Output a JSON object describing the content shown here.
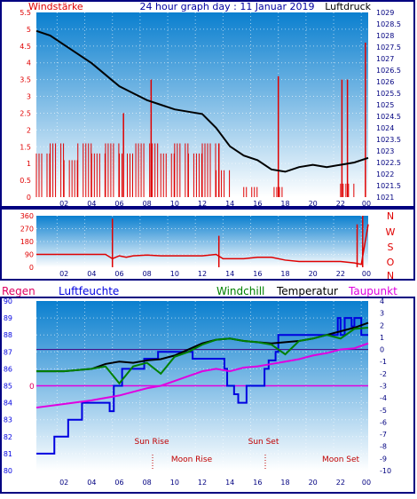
{
  "colors": {
    "frame": "#000080",
    "bg_top": "#0a7fcf",
    "bg_bottom": "#ffffff",
    "pressure": "#000000",
    "wind": "#e00000",
    "wind_peak": "#0000cc",
    "direction": "#e00000",
    "humidity": "#0000e0",
    "temperature": "#000000",
    "windchill": "#008000",
    "dewpoint": "#e000e0",
    "rain": "#e00060",
    "sun_text": "#c00000"
  },
  "panel1": {
    "title_left": "Windstärke",
    "title_center": "24 hour graph day : 11 Januar 2019",
    "title_right": "Luftdruck",
    "left_ticks": [
      "0",
      "0.5",
      "1",
      "1.5",
      "2",
      "2.5",
      "3",
      "3.5",
      "4",
      "4.5",
      "5",
      "5.5"
    ],
    "right_ticks": [
      "1021",
      "1021.5",
      "1022",
      "1022.5",
      "1023",
      "1023.5",
      "1024",
      "1024.5",
      "1025",
      "1025.5",
      "1026",
      "1026.5",
      "1027",
      "1027.5",
      "1028",
      "1028.5",
      "1029"
    ],
    "x_ticks": [
      "02",
      "04",
      "06",
      "08",
      "10",
      "12",
      "14",
      "16",
      "18",
      "20",
      "22",
      "00"
    ]
  },
  "panel2": {
    "left_ticks": [
      "0",
      "90",
      "180",
      "270",
      "360"
    ],
    "right_labels": [
      "N",
      "W",
      "S",
      "O",
      "N"
    ],
    "x_ticks": [
      "02",
      "04",
      "06",
      "08",
      "10",
      "12",
      "14",
      "16",
      "18",
      "20",
      "22",
      "00"
    ]
  },
  "panel3": {
    "label_rain": "Regen",
    "label_humidity": "Luftfeuchte",
    "label_windchill": "Windchill",
    "label_temperature": "Temperatur",
    "label_dewpoint": "Taupunkt",
    "rain_zero": "0",
    "left_ticks": [
      "80",
      "81",
      "82",
      "83",
      "84",
      "85",
      "86",
      "87",
      "88",
      "89",
      "90"
    ],
    "right_ticks": [
      "-10",
      "-9",
      "-8",
      "-7",
      "-6",
      "-5",
      "-4",
      "-3",
      "-2",
      "-1",
      "0",
      "1",
      "2",
      "3",
      "4"
    ],
    "x_ticks": [
      "02",
      "04",
      "06",
      "08",
      "10",
      "12",
      "14",
      "16",
      "18",
      "20",
      "22",
      "00"
    ],
    "sun_rise": "Sun Rise",
    "moon_rise": "Moon Rise",
    "sun_set": "Sun Set",
    "moon_set": "Moon Set"
  },
  "chart_data": [
    {
      "type": "line",
      "title": "24 hour graph day : 11 Januar 2019",
      "ylabel_left": "Windstärke",
      "ylabel_right": "Luftdruck",
      "xlim": [
        0,
        24
      ],
      "ylim_left": [
        0,
        5.5
      ],
      "ylim_right": [
        1021,
        1029
      ],
      "series": [
        {
          "name": "Luftdruck",
          "axis": "right",
          "x": [
            0,
            1,
            2,
            3,
            4,
            5,
            6,
            7,
            8,
            9,
            10,
            11,
            12,
            13,
            14,
            15,
            16,
            17,
            18,
            19,
            20,
            21,
            22,
            23,
            24
          ],
          "values": [
            1028.2,
            1028.0,
            1027.6,
            1027.2,
            1026.8,
            1026.3,
            1025.8,
            1025.5,
            1025.2,
            1025.0,
            1024.8,
            1024.7,
            1024.6,
            1024.0,
            1023.2,
            1022.8,
            1022.6,
            1022.2,
            1022.1,
            1022.3,
            1022.4,
            1022.3,
            1022.4,
            1022.5,
            1022.7
          ]
        },
        {
          "name": "Windstärke",
          "axis": "left",
          "x": [
            0,
            1,
            2,
            3,
            4,
            5,
            6,
            7,
            8,
            9,
            10,
            11,
            12,
            13,
            14,
            15,
            16,
            17,
            18,
            19,
            20,
            21,
            22,
            23,
            24
          ],
          "values": [
            1.3,
            1.6,
            1.1,
            1.6,
            1.3,
            1.6,
            1.3,
            1.6,
            1.6,
            1.3,
            1.6,
            1.3,
            1.6,
            0.8,
            0,
            0.3,
            0,
            0.3,
            0,
            0,
            0,
            0,
            0.4,
            0,
            0.8
          ]
        }
      ]
    },
    {
      "type": "scatter",
      "name": "Windrichtung",
      "xlim": [
        0,
        24
      ],
      "ylim": [
        0,
        360
      ],
      "x": [
        0,
        1,
        2,
        3,
        4,
        5,
        5.5,
        6,
        6.5,
        7,
        8,
        9,
        10,
        11,
        12,
        13,
        13.5,
        14,
        15,
        16,
        17,
        18,
        19,
        20,
        21,
        22,
        23,
        23.5,
        24
      ],
      "values": [
        90,
        90,
        90,
        90,
        90,
        90,
        60,
        80,
        70,
        80,
        85,
        80,
        80,
        80,
        80,
        90,
        60,
        60,
        60,
        70,
        70,
        50,
        40,
        40,
        40,
        40,
        30,
        20,
        300
      ]
    },
    {
      "type": "line",
      "ylabel_left": "Luftfeuchte",
      "ylabel_right": "Temperatur",
      "xlim": [
        0,
        24
      ],
      "ylim_left": [
        80,
        90
      ],
      "ylim_right": [
        -10,
        4
      ],
      "series": [
        {
          "name": "Luftfeuchte",
          "axis": "left",
          "x": [
            0,
            1,
            1.3,
            2.3,
            3.3,
            4.3,
            5.3,
            5.6,
            6.2,
            7.2,
            7.8,
            8.8,
            10.3,
            11.3,
            13.6,
            13.8,
            14.3,
            14.6,
            15.2,
            16.5,
            16.8,
            17.3,
            17.5,
            19.5,
            21.5,
            21.8,
            22,
            22.3,
            22.8,
            23,
            23.5,
            24
          ],
          "values": [
            81,
            81,
            82,
            83,
            84,
            84,
            83.5,
            85,
            86,
            86,
            86.6,
            87,
            87,
            86.6,
            86,
            85,
            84.5,
            84,
            85,
            86,
            86.5,
            87,
            88,
            88,
            88,
            89,
            88,
            89,
            88.5,
            89,
            88,
            88
          ]
        },
        {
          "name": "Temperatur",
          "axis": "right",
          "x": [
            0,
            2,
            4,
            5,
            6,
            7,
            8,
            9,
            10,
            11,
            12,
            13,
            14,
            15,
            16,
            17,
            18,
            19,
            20,
            21,
            22,
            23,
            24
          ],
          "values": [
            -1.8,
            -1.8,
            -1.6,
            -1.2,
            -1.0,
            -1.1,
            -0.9,
            -0.8,
            -0.5,
            0.0,
            0.5,
            0.8,
            0.9,
            0.7,
            0.6,
            0.5,
            0.6,
            0.7,
            0.9,
            1.2,
            1.5,
            1.8,
            2.2
          ]
        },
        {
          "name": "Windchill",
          "axis": "right",
          "x": [
            0,
            2,
            4,
            5,
            6,
            7,
            8,
            9,
            10,
            11,
            12,
            13,
            14,
            15,
            16,
            17,
            18,
            19,
            20,
            21,
            22,
            23,
            24
          ],
          "values": [
            -1.8,
            -1.8,
            -1.6,
            -1.4,
            -2.8,
            -1.4,
            -1.1,
            -2.0,
            -0.6,
            -0.2,
            0.4,
            0.8,
            0.9,
            0.7,
            0.6,
            0.4,
            -0.4,
            0.7,
            0.9,
            1.2,
            0.9,
            1.7,
            1.8
          ]
        },
        {
          "name": "Taupunkt",
          "axis": "right",
          "x": [
            0,
            2,
            4,
            5,
            6,
            7,
            8,
            9,
            10,
            11,
            12,
            13,
            14,
            15,
            16,
            17,
            18,
            19,
            20,
            21,
            22,
            23,
            24
          ],
          "values": [
            -4.8,
            -4.5,
            -4.2,
            -4.0,
            -3.8,
            -3.5,
            -3.2,
            -3.0,
            -2.6,
            -2.2,
            -1.8,
            -1.6,
            -1.8,
            -1.5,
            -1.4,
            -1.2,
            -1.0,
            -0.8,
            -0.5,
            -0.3,
            0.0,
            0.1,
            0.5
          ]
        }
      ]
    }
  ]
}
